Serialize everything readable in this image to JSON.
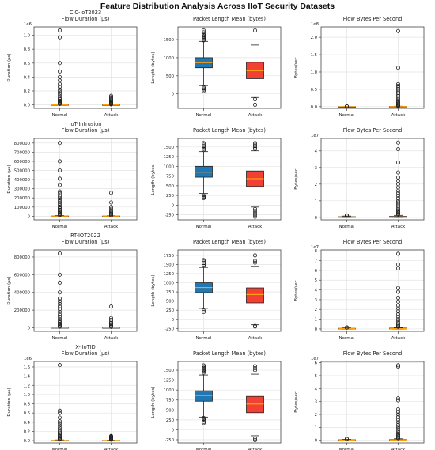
{
  "title": "Feature Distribution Analysis Across IIoT Security Datasets",
  "colors": {
    "normal": "#1f77b4",
    "attack": "#f04134",
    "median": "#ff9e0d"
  },
  "chart_data": [
    {
      "type": "box",
      "dataset": "CIC-IoT2023",
      "title": "Flow Duration (μs)",
      "ylabel": "Duration (μs)",
      "exponent": "1e6",
      "ylim": [
        -0.05,
        1.12
      ],
      "yticks": [
        0.0,
        0.2,
        0.4,
        0.6,
        0.8,
        1.0
      ],
      "grid": true,
      "categories": [
        "Normal",
        "Attack"
      ],
      "boxes": [
        {
          "q1": 0.0,
          "median": 0.001,
          "q3": 0.003,
          "whislo": 0.0,
          "whishi": 0.008,
          "fliers": [
            1.07,
            0.97,
            0.6,
            0.48,
            0.4,
            0.35,
            0.3,
            0.26,
            0.22,
            0.19,
            0.16,
            0.13,
            0.1,
            0.08,
            0.06,
            0.045,
            0.035,
            0.025,
            0.018,
            0.012
          ]
        },
        {
          "q1": 0.0,
          "median": 0.001,
          "q3": 0.002,
          "whislo": 0.0,
          "whishi": 0.005,
          "fliers": [
            0.13,
            0.11,
            0.09,
            0.075,
            0.06,
            0.05,
            0.04,
            0.03,
            0.022,
            0.015,
            0.01,
            0.007
          ]
        }
      ]
    },
    {
      "type": "box",
      "title": "Packet Length Mean (bytes)",
      "ylabel": "Length (bytes)",
      "ylim": [
        -400,
        1850
      ],
      "yticks": [
        0,
        500,
        1000,
        1500
      ],
      "grid": true,
      "categories": [
        "Normal",
        "Attack"
      ],
      "boxes": [
        {
          "q1": 720,
          "median": 860,
          "q3": 1000,
          "whislo": 230,
          "whishi": 1450,
          "fliers": [
            1750,
            1700,
            1650,
            1620,
            1590,
            1560,
            1530,
            1500,
            1480,
            180,
            150,
            120,
            80
          ]
        },
        {
          "q1": 420,
          "median": 640,
          "q3": 870,
          "whislo": -100,
          "whishi": 1350,
          "fliers": [
            1750,
            -150,
            -300
          ]
        }
      ]
    },
    {
      "type": "box",
      "title": "Flow Bytes Per Second",
      "ylabel": "Bytes/sec",
      "exponent": "1e8",
      "ylim": [
        -0.05,
        2.3
      ],
      "yticks": [
        0.0,
        0.5,
        1.0,
        1.5,
        2.0
      ],
      "grid": true,
      "categories": [
        "Normal",
        "Attack"
      ],
      "boxes": [
        {
          "q1": 0.0,
          "median": 0.0,
          "q3": 0.0,
          "whislo": 0.0,
          "whishi": 0.0,
          "fliers": [
            0.005,
            0.01
          ]
        },
        {
          "q1": 0.0,
          "median": 0.001,
          "q3": 0.005,
          "whislo": 0.0,
          "whishi": 0.012,
          "fliers": [
            2.18,
            1.12,
            0.65,
            0.6,
            0.55,
            0.5,
            0.45,
            0.4,
            0.35,
            0.3,
            0.25,
            0.2,
            0.16,
            0.12,
            0.09,
            0.07,
            0.05,
            0.035,
            0.025,
            0.018
          ]
        }
      ]
    },
    {
      "type": "box",
      "dataset": "IoT-Intrusion",
      "title": "Flow Duration (μs)",
      "ylabel": "Duration (μs)",
      "ylim": [
        -40000,
        850000
      ],
      "yticks": [
        0,
        100000,
        200000,
        300000,
        400000,
        500000,
        600000,
        700000,
        800000
      ],
      "grid": true,
      "categories": [
        "Normal",
        "Attack"
      ],
      "boxes": [
        {
          "q1": 0,
          "median": 1000,
          "q3": 3000,
          "whislo": 0,
          "whishi": 8000,
          "fliers": [
            800000,
            600000,
            500000,
            410000,
            340000,
            270000,
            250000,
            220000,
            200000,
            180000,
            160000,
            140000,
            120000,
            100000,
            85000,
            70000,
            55000,
            42000,
            30000,
            20000,
            12000
          ]
        },
        {
          "q1": 0,
          "median": 800,
          "q3": 2500,
          "whislo": 0,
          "whishi": 6000,
          "fliers": [
            255000,
            150000,
            100000,
            80000,
            60000,
            45000,
            35000,
            25000,
            15000,
            9000
          ]
        }
      ]
    },
    {
      "type": "box",
      "title": "Packet Length Mean (bytes)",
      "ylabel": "Length (bytes)",
      "ylim": [
        -380,
        1720
      ],
      "yticks": [
        -250,
        0,
        250,
        500,
        750,
        1000,
        1250,
        1500
      ],
      "grid": true,
      "categories": [
        "Normal",
        "Attack"
      ],
      "boxes": [
        {
          "q1": 720,
          "median": 850,
          "q3": 1000,
          "whislo": 300,
          "whishi": 1380,
          "fliers": [
            1600,
            1560,
            1520,
            1480,
            1450,
            1420,
            250,
            220,
            200,
            180
          ]
        },
        {
          "q1": 480,
          "median": 680,
          "q3": 880,
          "whislo": -50,
          "whishi": 1400,
          "fliers": [
            1600,
            1560,
            1520,
            1480,
            1450,
            -100,
            -150,
            -200,
            -250,
            -300
          ]
        }
      ]
    },
    {
      "type": "box",
      "title": "Flow Bytes Per Second",
      "ylabel": "Bytes/sec",
      "exponent": "1e7",
      "ylim": [
        -0.15,
        4.75
      ],
      "yticks": [
        0,
        1,
        2,
        3,
        4
      ],
      "grid": true,
      "categories": [
        "Normal",
        "Attack"
      ],
      "boxes": [
        {
          "q1": 0.0,
          "median": 0.02,
          "q3": 0.04,
          "whislo": 0.0,
          "whishi": 0.08,
          "fliers": [
            0.1,
            0.12
          ]
        },
        {
          "q1": 0.0,
          "median": 0.02,
          "q3": 0.06,
          "whislo": 0.0,
          "whishi": 0.12,
          "fliers": [
            4.5,
            4.1,
            3.3,
            2.7,
            2.4,
            2.2,
            2.0,
            1.8,
            1.6,
            1.45,
            1.3,
            1.15,
            1.0,
            0.9,
            0.8,
            0.7,
            0.6,
            0.5,
            0.42,
            0.35,
            0.28,
            0.22,
            0.17
          ]
        }
      ]
    },
    {
      "type": "box",
      "dataset": "RT-IOT2022",
      "title": "Flow Duration (μs)",
      "ylabel": "Duration (μs)",
      "ylim": [
        -40000,
        880000
      ],
      "yticks": [
        0,
        200000,
        400000,
        600000,
        800000
      ],
      "grid": true,
      "categories": [
        "Normal",
        "Attack"
      ],
      "boxes": [
        {
          "q1": 0,
          "median": 1000,
          "q3": 3000,
          "whislo": 0,
          "whishi": 9000,
          "fliers": [
            840000,
            600000,
            510000,
            400000,
            330000,
            300000,
            270000,
            240000,
            210000,
            180000,
            150000,
            125000,
            100000,
            80000,
            60000,
            45000,
            32000,
            20000,
            12000
          ]
        },
        {
          "q1": 0,
          "median": 800,
          "q3": 2500,
          "whislo": 0,
          "whishi": 6000,
          "fliers": [
            240000,
            110000,
            90000,
            70000,
            55000,
            40000,
            28000,
            18000,
            10000
          ]
        }
      ]
    },
    {
      "type": "box",
      "title": "Packet Length Mean (bytes)",
      "ylabel": "Length (bytes)",
      "ylim": [
        -330,
        1900
      ],
      "yticks": [
        -250,
        0,
        250,
        500,
        750,
        1000,
        1250,
        1500,
        1750
      ],
      "grid": true,
      "categories": [
        "Normal",
        "Attack"
      ],
      "boxes": [
        {
          "q1": 730,
          "median": 870,
          "q3": 1000,
          "whislo": 300,
          "whishi": 1420,
          "fliers": [
            1620,
            1580,
            1540,
            1500,
            1460,
            240,
            200
          ]
        },
        {
          "q1": 450,
          "median": 680,
          "q3": 860,
          "whislo": -150,
          "whishi": 1450,
          "fliers": [
            1750,
            1600,
            1550,
            -180,
            -200
          ]
        }
      ]
    },
    {
      "type": "box",
      "title": "Flow Bytes Per Second",
      "ylabel": "Bytes/sec",
      "exponent": "1e7",
      "ylim": [
        -0.25,
        8.1
      ],
      "yticks": [
        0,
        1,
        2,
        3,
        4,
        5,
        6,
        7,
        8
      ],
      "grid": true,
      "categories": [
        "Normal",
        "Attack"
      ],
      "boxes": [
        {
          "q1": 0.0,
          "median": 0.03,
          "q3": 0.06,
          "whislo": 0.0,
          "whishi": 0.1,
          "fliers": [
            0.13,
            0.16
          ]
        },
        {
          "q1": 0.0,
          "median": 0.03,
          "q3": 0.08,
          "whislo": 0.0,
          "whishi": 0.15,
          "fliers": [
            7.7,
            6.6,
            6.2,
            4.2,
            3.8,
            3.2,
            2.8,
            2.4,
            2.1,
            1.8,
            1.5,
            1.25,
            1.0,
            0.8,
            0.6,
            0.45,
            0.32,
            0.22
          ]
        }
      ]
    },
    {
      "type": "box",
      "dataset": "X-IIoTID",
      "title": "Flow Duration (μs)",
      "ylabel": "Duration (μs)",
      "exponent": "1e6",
      "ylim": [
        -0.05,
        1.72
      ],
      "yticks": [
        0.0,
        0.2,
        0.4,
        0.6,
        0.8,
        1.0,
        1.2,
        1.4,
        1.6
      ],
      "grid": true,
      "categories": [
        "Normal",
        "Attack"
      ],
      "boxes": [
        {
          "q1": 0.0,
          "median": 0.002,
          "q3": 0.006,
          "whislo": 0.0,
          "whishi": 0.015,
          "fliers": [
            1.64,
            0.65,
            0.6,
            0.5,
            0.42,
            0.38,
            0.33,
            0.28,
            0.24,
            0.2,
            0.17,
            0.14,
            0.11,
            0.09,
            0.07,
            0.05,
            0.035,
            0.025
          ]
        },
        {
          "q1": 0.0,
          "median": 0.002,
          "q3": 0.005,
          "whislo": 0.0,
          "whishi": 0.012,
          "fliers": [
            0.1,
            0.09,
            0.08,
            0.07,
            0.06,
            0.05,
            0.04,
            0.03,
            0.02
          ]
        }
      ]
    },
    {
      "type": "box",
      "title": "Packet Length Mean (bytes)",
      "ylabel": "Length (bytes)",
      "ylim": [
        -330,
        1720
      ],
      "yticks": [
        -250,
        0,
        250,
        500,
        750,
        1000,
        1250,
        1500
      ],
      "grid": true,
      "categories": [
        "Normal",
        "Attack"
      ],
      "boxes": [
        {
          "q1": 720,
          "median": 860,
          "q3": 980,
          "whislo": 320,
          "whishi": 1380,
          "fliers": [
            1620,
            1590,
            1560,
            1530,
            1500,
            1470,
            1440,
            300,
            270,
            240,
            200,
            170
          ]
        },
        {
          "q1": 430,
          "median": 650,
          "q3": 840,
          "whislo": -150,
          "whishi": 1400,
          "fliers": [
            1600,
            1550,
            1500,
            -220,
            -260
          ]
        }
      ]
    },
    {
      "type": "box",
      "title": "Flow Bytes Per Second",
      "ylabel": "Bytes/sec",
      "exponent": "1e7",
      "ylim": [
        -0.2,
        6.1
      ],
      "yticks": [
        0,
        1,
        2,
        3,
        4,
        5,
        6
      ],
      "grid": true,
      "categories": [
        "Normal",
        "Attack"
      ],
      "boxes": [
        {
          "q1": 0.0,
          "median": 0.02,
          "q3": 0.05,
          "whislo": 0.0,
          "whishi": 0.08,
          "fliers": [
            0.1,
            0.12
          ]
        },
        {
          "q1": 0.0,
          "median": 0.02,
          "q3": 0.06,
          "whislo": 0.0,
          "whishi": 0.12,
          "fliers": [
            5.8,
            5.7,
            3.25,
            3.1,
            2.4,
            2.2,
            2.0,
            1.8,
            1.6,
            1.4,
            1.2,
            1.05,
            0.9,
            0.75,
            0.6,
            0.48,
            0.38,
            0.3,
            0.22,
            0.16
          ]
        }
      ]
    }
  ]
}
